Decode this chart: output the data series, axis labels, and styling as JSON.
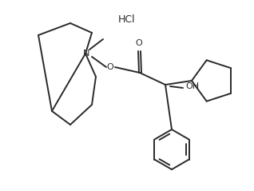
{
  "bg_color": "#ffffff",
  "line_color": "#2a2a2a",
  "line_width": 1.4,
  "text_color": "#2a2a2a",
  "hcl_label": "HCl",
  "oh_label": "OH",
  "o_label": "O",
  "n_label": "N"
}
